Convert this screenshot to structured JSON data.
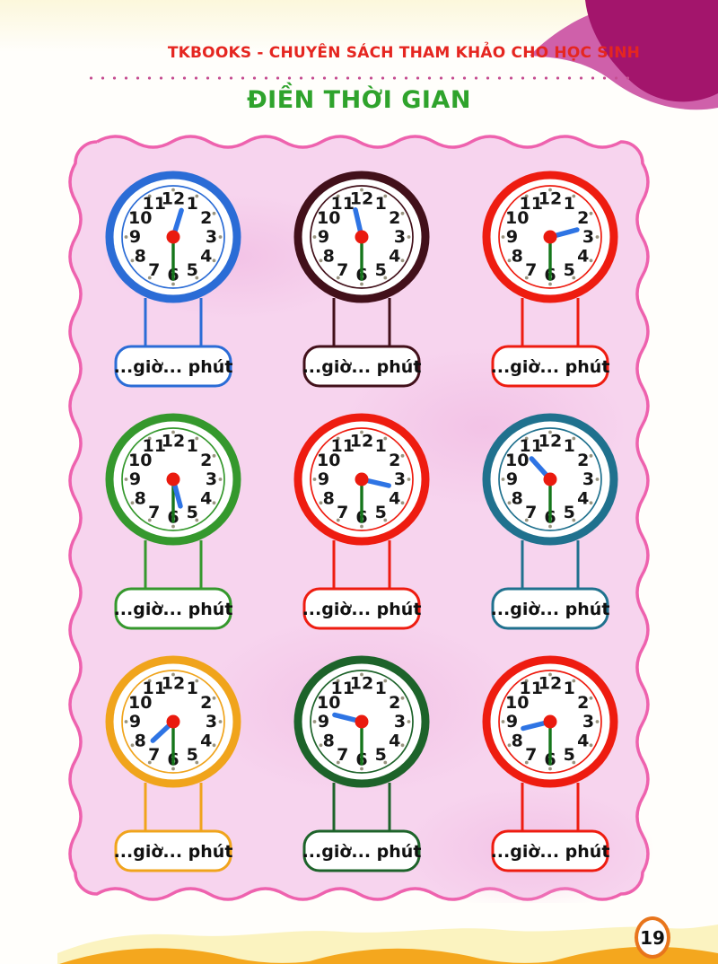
{
  "page": {
    "header_text": "TKBOOKS - CHUYÊN SÁCH THAM KHẢO CHO HỌC SINH",
    "title": "ĐIỀN THỜI GIAN",
    "page_number": "19"
  },
  "colors": {
    "header_text": "#e52620",
    "title_text": "#2fa32c",
    "frame_border": "#ee62ae",
    "frame_fill": "#f7d4ee",
    "hour_hand": "#2e74e4",
    "minute_hand": "#15761b",
    "center_dot": "#ea1a0e",
    "tick_dot": "#98937f",
    "number_text": "#161616",
    "page_badge_border": "#e8751c",
    "wave_light": "#fbf3c0",
    "wave_orange": "#f4a71e",
    "corner_magenta_dark": "#a3156c",
    "corner_magenta_light": "#cf60aa"
  },
  "clock_face": {
    "numbers": [
      "1",
      "2",
      "3",
      "4",
      "5",
      "6",
      "7",
      "8",
      "9",
      "10",
      "11",
      "12"
    ],
    "answer_label": "...giờ... phút"
  },
  "clocks": [
    {
      "position": "row1-col1",
      "rim_color": "#2b6cd6",
      "time_shown": "12:30",
      "hour_hand_angle_deg": 17,
      "minute_hand_angle_deg": 180
    },
    {
      "position": "row1-col2",
      "rim_color": "#42101a",
      "time_shown": "11:30",
      "hour_hand_angle_deg": 347,
      "minute_hand_angle_deg": 180
    },
    {
      "position": "row1-col3",
      "rim_color": "#ee1c10",
      "time_shown": "2:30",
      "hour_hand_angle_deg": 75,
      "minute_hand_angle_deg": 180
    },
    {
      "position": "row2-col1",
      "rim_color": "#35982d",
      "time_shown": "5:30",
      "hour_hand_angle_deg": 165,
      "minute_hand_angle_deg": 180
    },
    {
      "position": "row2-col2",
      "rim_color": "#ee1c10",
      "time_shown": "3:30",
      "hour_hand_angle_deg": 103,
      "minute_hand_angle_deg": 180
    },
    {
      "position": "row2-col3",
      "rim_color": "#20718e",
      "time_shown": "10:30",
      "hour_hand_angle_deg": 318,
      "minute_hand_angle_deg": 180
    },
    {
      "position": "row3-col1",
      "rim_color": "#f0a41c",
      "time_shown": "7:30",
      "hour_hand_angle_deg": 227,
      "minute_hand_angle_deg": 180
    },
    {
      "position": "row3-col2",
      "rim_color": "#1d632a",
      "time_shown": "9:30",
      "hour_hand_angle_deg": 284,
      "minute_hand_angle_deg": 180
    },
    {
      "position": "row3-col3",
      "rim_color": "#ee1c10",
      "time_shown": "8:30",
      "hour_hand_angle_deg": 256,
      "minute_hand_angle_deg": 180
    }
  ]
}
